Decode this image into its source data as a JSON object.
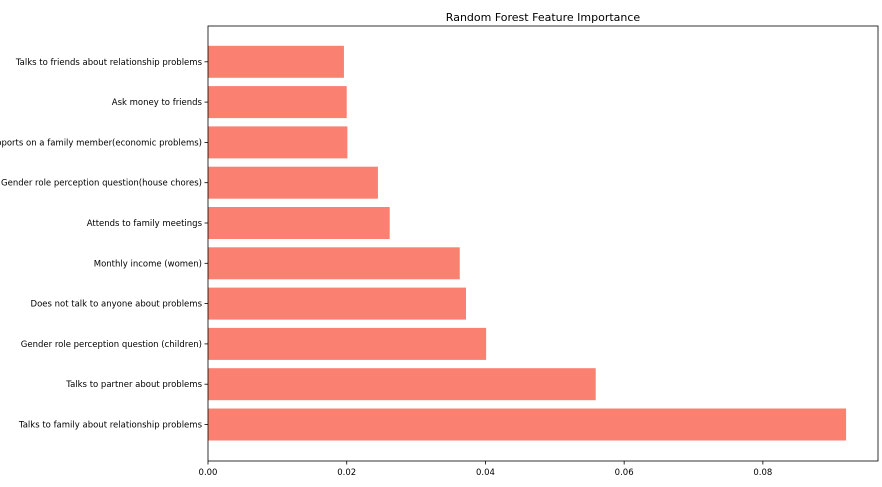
{
  "chart_data": {
    "type": "bar",
    "orientation": "horizontal",
    "title": "Random Forest Feature Importance",
    "xlabel": "",
    "ylabel": "",
    "bar_color": "#fa8072",
    "categories": [
      "Talks to family about relationship problems",
      "Talks to partner about problems",
      "Gender role perception question (children)",
      "Does not talk to anyone about problems",
      "Monthly income (women)",
      "Attends to family meetings",
      "Gender role perception question(house chores)",
      "Supports on a family member(economic problems)",
      "Ask money to friends",
      "Talks to friends about relationship problems"
    ],
    "values": [
      0.092,
      0.0559,
      0.0401,
      0.0372,
      0.0363,
      0.0262,
      0.0245,
      0.0201,
      0.02,
      0.0196
    ],
    "xlim": [
      0,
      0.0966
    ],
    "xticks": [
      "0.00",
      "0.02",
      "0.04",
      "0.06",
      "0.08"
    ],
    "grid": false,
    "legend": "none"
  }
}
